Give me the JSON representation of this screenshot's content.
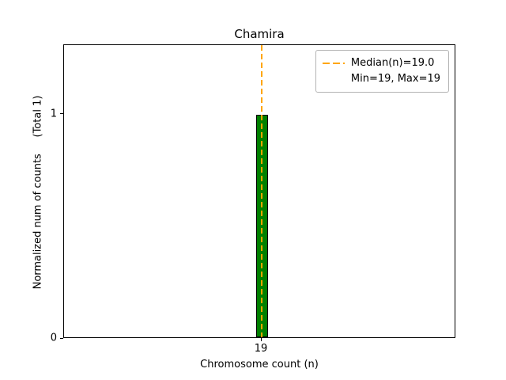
{
  "chart_data": {
    "type": "bar",
    "title": "Chamira",
    "xlabel": "Chromosome count (n)",
    "ylabel": "Normalized num of counts     (Total 1)",
    "categories": [
      "19"
    ],
    "values": [
      1
    ],
    "yticks": [
      0,
      1
    ],
    "ytick_labels": [
      "0",
      "1"
    ],
    "xtick_labels": [
      "19"
    ],
    "ylim": [
      0,
      1.31
    ],
    "xlim_note": "single bar centered at x=19",
    "median": 19.0,
    "min": 19,
    "max": 19,
    "bar_color": "#008000",
    "bar_edge_color": "#000000",
    "median_line_color": "#ffa500",
    "grid": false,
    "legend": {
      "position": "upper right",
      "entries": [
        "Median(n)=19.0",
        "Min=19, Max=19"
      ]
    }
  }
}
